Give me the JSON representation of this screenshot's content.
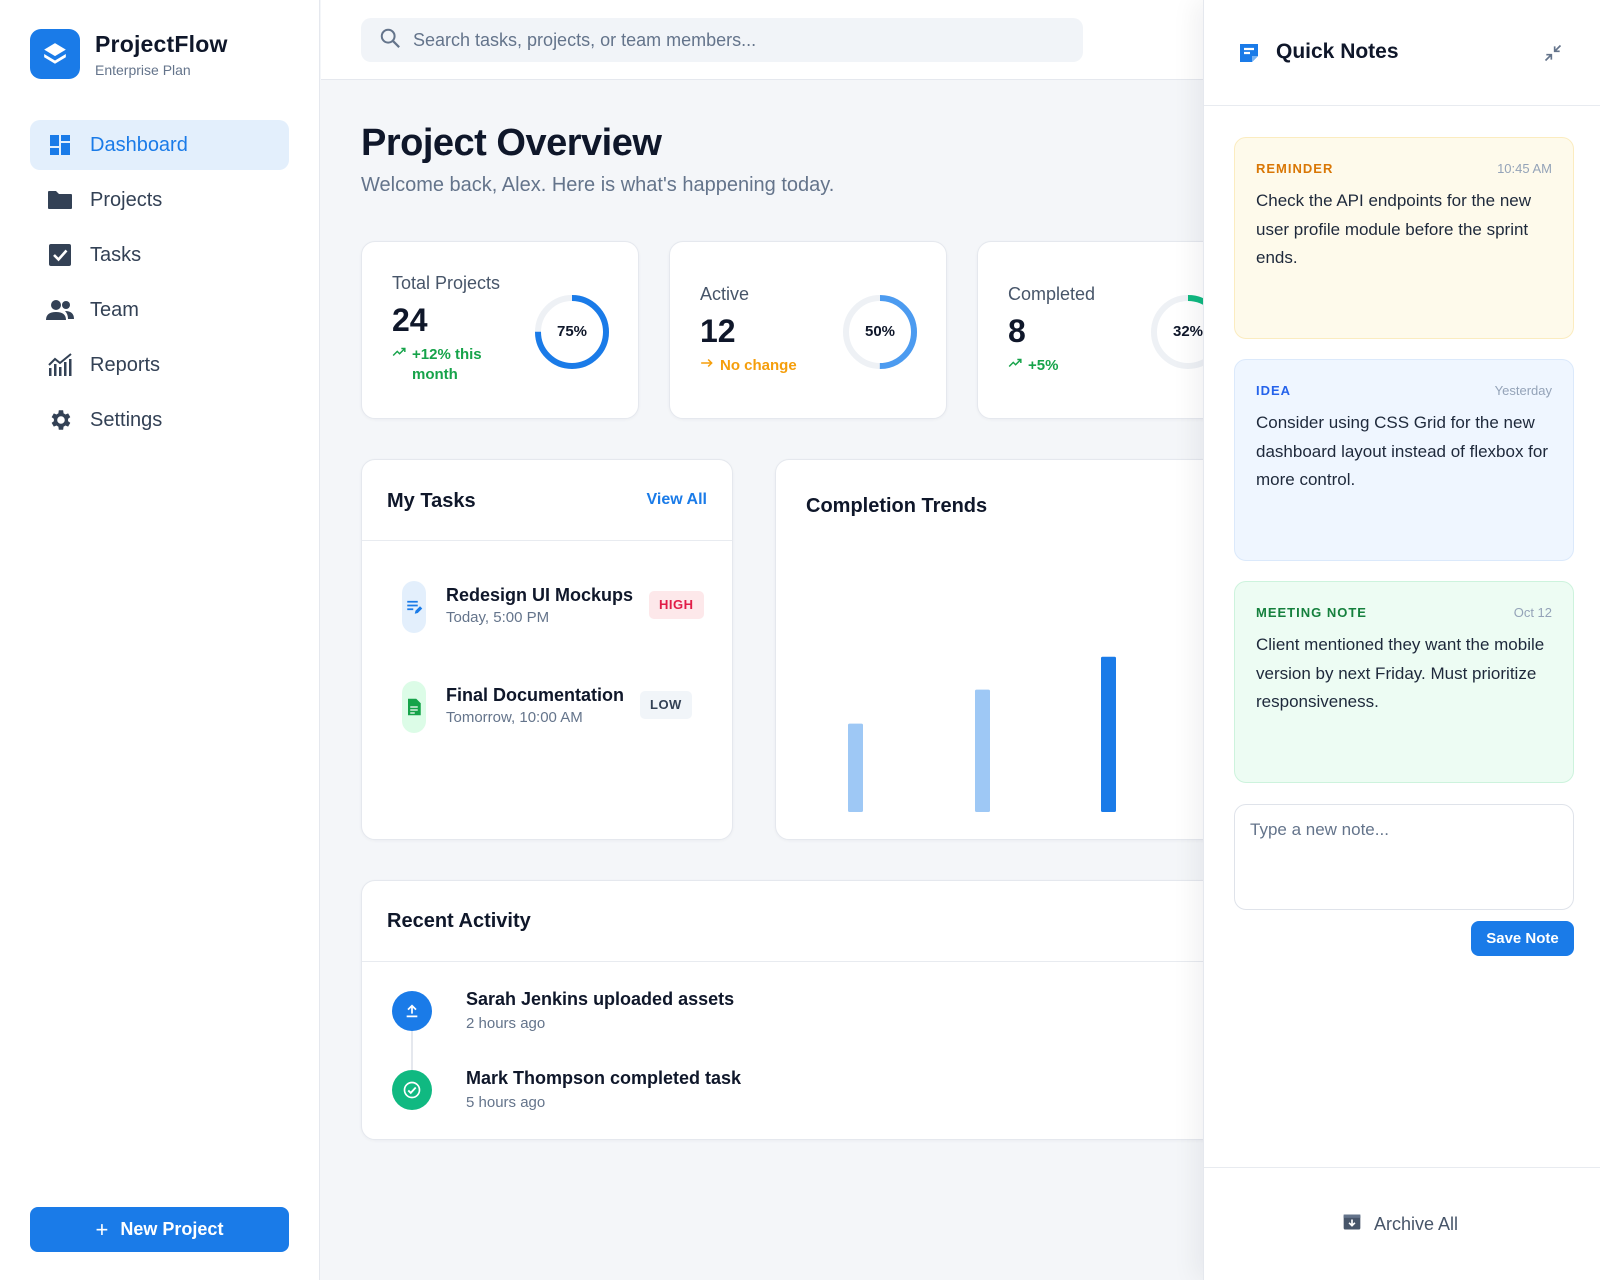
{
  "brand": {
    "name": "ProjectFlow",
    "plan": "Enterprise Plan"
  },
  "nav": [
    {
      "label": "Dashboard",
      "icon": "dashboard-icon",
      "active": true
    },
    {
      "label": "Projects",
      "icon": "folder-icon"
    },
    {
      "label": "Tasks",
      "icon": "checkbox-icon"
    },
    {
      "label": "Team",
      "icon": "team-icon"
    },
    {
      "label": "Reports",
      "icon": "reports-icon"
    },
    {
      "label": "Settings",
      "icon": "gear-icon"
    }
  ],
  "new_project_label": "New Project",
  "search": {
    "placeholder": "Search tasks, projects, or team members..."
  },
  "page": {
    "title": "Project Overview",
    "subtitle": "Welcome back, Alex. Here is what's happening today."
  },
  "stats": [
    {
      "label": "Total Projects",
      "value": "24",
      "trend": "+12% this month",
      "percent": "75%",
      "fraction": 0.75,
      "ring_color": "#1a7be8",
      "trend_color": "#16a34a"
    },
    {
      "label": "Active",
      "value": "12",
      "trend": "No change",
      "percent": "50%",
      "fraction": 0.5,
      "ring_color": "#4c9bf0",
      "trend_color": "#f59e0b"
    },
    {
      "label": "Completed",
      "value": "8",
      "trend": "+5%",
      "percent": "32%",
      "fraction": 0.32,
      "ring_color": "#10b981",
      "trend_color": "#16a34a"
    }
  ],
  "tasks_panel": {
    "title": "My Tasks",
    "view_all": "View All",
    "items": [
      {
        "title": "Redesign UI Mockups",
        "time": "Today, 5:00 PM",
        "priority": "HIGH"
      },
      {
        "title": "Final Documentation",
        "time": "Tomorrow, 10:00 AM",
        "priority": "LOW"
      }
    ]
  },
  "trends_panel": {
    "title": "Completion Trends"
  },
  "chart_data": {
    "type": "bar",
    "title": "Completion Trends",
    "categories": [
      "",
      "",
      ""
    ],
    "values": [
      78,
      108,
      137
    ],
    "ylim": [
      0,
      150
    ],
    "colors": [
      "#9ec8f5",
      "#9ec8f5",
      "#1a7be8"
    ],
    "grid": false
  },
  "activity_panel": {
    "title": "Recent Activity",
    "items": [
      {
        "title": "Sarah Jenkins uploaded assets",
        "time": "2 hours ago",
        "icon": "upload-icon",
        "color": "#1a7be8"
      },
      {
        "title": "Mark Thompson completed task",
        "time": "5 hours ago",
        "icon": "check-circle-icon",
        "color": "#10b981"
      }
    ]
  },
  "notes": {
    "title": "Quick Notes",
    "items": [
      {
        "tag": "REMINDER",
        "time": "10:45 AM",
        "body": "Check the API endpoints for the new user profile module before the sprint ends.",
        "bg": "#fefaeb",
        "border": "#fbecc0",
        "tag_color": "#d97706"
      },
      {
        "tag": "IDEA",
        "time": "Yesterday",
        "body": "Consider using CSS Grid for the new dashboard layout instead of flexbox for more control.",
        "bg": "#eff6ff",
        "border": "#dbe9fb",
        "tag_color": "#2563eb"
      },
      {
        "tag": "MEETING NOTE",
        "time": "Oct 12",
        "body": "Client mentioned they want the mobile version by next Friday. Must prioritize responsiveness.",
        "bg": "#edfcf3",
        "border": "#cdf3dd",
        "tag_color": "#15803d"
      }
    ],
    "input_placeholder": "Type a new note...",
    "save_label": "Save Note",
    "archive_label": "Archive All"
  }
}
